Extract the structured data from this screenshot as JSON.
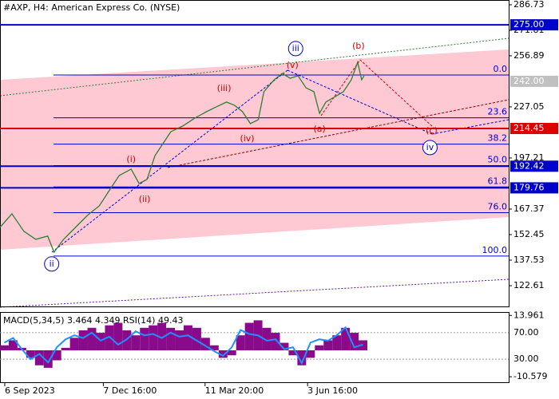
{
  "chart_data": {
    "type": "line",
    "title": "#AXP, H4:  American Express Co. (NYSE)",
    "xlim": [
      0,
      640
    ],
    "xticks": [
      {
        "value": 6,
        "label": "6 Sep 2023"
      },
      {
        "value": 130,
        "label": "7 Dec 16:00"
      },
      {
        "value": 258,
        "label": "11 Mar 20:00"
      },
      {
        "value": 387,
        "label": "3 Jun 16:00"
      }
    ],
    "ylim": [
      110.5,
      289.5
    ],
    "yticks": [
      286.73,
      271.81,
      256.89,
      227.05,
      197.21,
      167.37,
      152.45,
      137.53,
      122.61
    ],
    "series": [
      {
        "color": "#2e7d32",
        "x": [
          0,
          15,
          30,
          45,
          60,
          68,
          80,
          95,
          110,
          125,
          140,
          150,
          165,
          175,
          185,
          195,
          205,
          215,
          230,
          245,
          260,
          270,
          285,
          295,
          305,
          315,
          325,
          332,
          345,
          355,
          365,
          375,
          385,
          395,
          402,
          410,
          420,
          432,
          442,
          450,
          455,
          458
        ],
        "values": [
          156.7,
          164.6,
          154.4,
          149.7,
          151.6,
          142.2,
          149.7,
          156.7,
          163.7,
          169.3,
          180.0,
          187.0,
          190.7,
          182.3,
          184.7,
          198.6,
          205.6,
          212.6,
          215.9,
          220.5,
          224.3,
          226.6,
          229.9,
          228.0,
          224.3,
          217.3,
          219.6,
          235.9,
          242.9,
          246.6,
          243.8,
          245.2,
          238.2,
          235.9,
          223.3,
          229.9,
          232.6,
          235.9,
          242.9,
          253.2,
          242.9,
          245.2
        ]
      }
    ],
    "levels": [
      {
        "value": 275.0,
        "label": "275.00",
        "color": "#0000cc",
        "line": true
      },
      {
        "value": 242.0,
        "label": "242.00",
        "color": "#c0c0c0",
        "line": false
      },
      {
        "value": 214.45,
        "label": "214.45",
        "color": "#dd0000",
        "line": true
      },
      {
        "value": 192.42,
        "label": "192.42",
        "color": "#0000cc",
        "line": true
      },
      {
        "value": 179.76,
        "label": "179.76",
        "color": "#0000cc",
        "line": true
      }
    ],
    "fibonacci": [
      {
        "value": 245.7,
        "label": "0.0"
      },
      {
        "value": 220.7,
        "label": "23.6"
      },
      {
        "value": 205.3,
        "label": "38.2"
      },
      {
        "value": 192.8,
        "label": "50.0"
      },
      {
        "value": 180.3,
        "label": "61.8"
      },
      {
        "value": 165.3,
        "label": "76.0"
      },
      {
        "value": 139.9,
        "label": "100.0"
      }
    ],
    "annotations": [
      {
        "text": "(i)",
        "x": 165,
        "y": 196.3,
        "circled": false
      },
      {
        "text": "(ii)",
        "x": 182,
        "y": 173.0,
        "circled": false
      },
      {
        "text": "(iii)",
        "x": 282,
        "y": 237.8,
        "circled": false
      },
      {
        "text": "(iv)",
        "x": 311,
        "y": 208.4,
        "circled": false
      },
      {
        "text": "(v)",
        "x": 368,
        "y": 251.3,
        "circled": false
      },
      {
        "text": "(a)",
        "x": 402,
        "y": 214.0,
        "circled": false
      },
      {
        "text": "(b)",
        "x": 451,
        "y": 262.5,
        "circled": false
      },
      {
        "text": "(c)",
        "x": 543,
        "y": 213.1,
        "circled": false
      },
      {
        "text": "ii",
        "x": 65,
        "y": 135.3,
        "circled": true
      },
      {
        "text": "iii",
        "x": 372,
        "y": 261.1,
        "circled": true
      },
      {
        "text": "iv",
        "x": 541,
        "y": 203.3,
        "circled": true
      }
    ],
    "indicator": {
      "label": "MACD(5,34,5) 3.464 4.349 RSI(14) 49.43",
      "ylim": [
        -11.5,
        15
      ],
      "yticks": [
        {
          "value": 13.961,
          "label": "13.961"
        },
        {
          "value": -10.579,
          "label": "-10.579"
        }
      ],
      "rsi_lim": [
        0,
        100
      ],
      "rsi_ticks": [
        {
          "value": 70,
          "label": "70.00"
        },
        {
          "value": 30,
          "label": "30.00"
        }
      ],
      "macd": [
        2,
        4,
        1,
        -3,
        -6,
        -7,
        -4,
        1,
        5,
        8,
        9,
        7,
        10,
        11,
        8,
        6,
        9,
        10,
        11,
        9,
        8,
        10,
        9,
        5,
        2,
        -3,
        -2,
        6,
        11,
        12,
        9,
        7,
        3,
        -2,
        -6,
        -3,
        2,
        4,
        6,
        9,
        7,
        4
      ],
      "rsi": [
        55,
        62,
        45,
        30,
        38,
        25,
        48,
        60,
        66,
        62,
        70,
        58,
        64,
        52,
        60,
        72,
        66,
        68,
        62,
        70,
        64,
        66,
        58,
        50,
        42,
        35,
        48,
        74,
        68,
        66,
        58,
        60,
        45,
        48,
        24,
        55,
        60,
        58,
        66,
        78,
        48,
        52
      ]
    }
  }
}
